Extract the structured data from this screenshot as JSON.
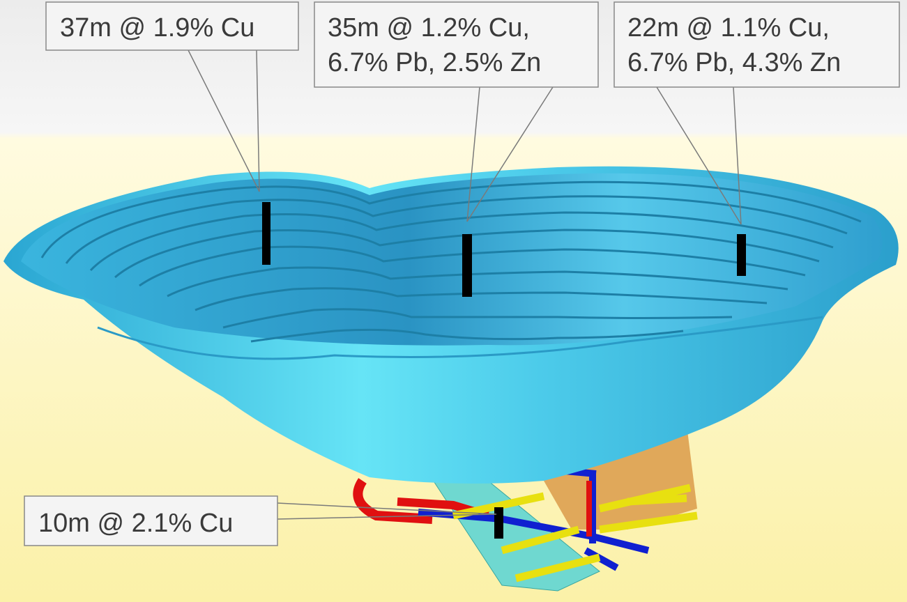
{
  "annotations": [
    {
      "lines": [
        "37m @ 1.9% Cu"
      ]
    },
    {
      "lines": [
        "35m @ 1.2% Cu,",
        "6.7% Pb, 2.5% Zn"
      ]
    },
    {
      "lines": [
        "22m @ 1.1% Cu,",
        "6.7% Pb, 4.3% Zn"
      ]
    },
    {
      "lines": [
        "10m @ 2.1% Cu"
      ]
    }
  ]
}
